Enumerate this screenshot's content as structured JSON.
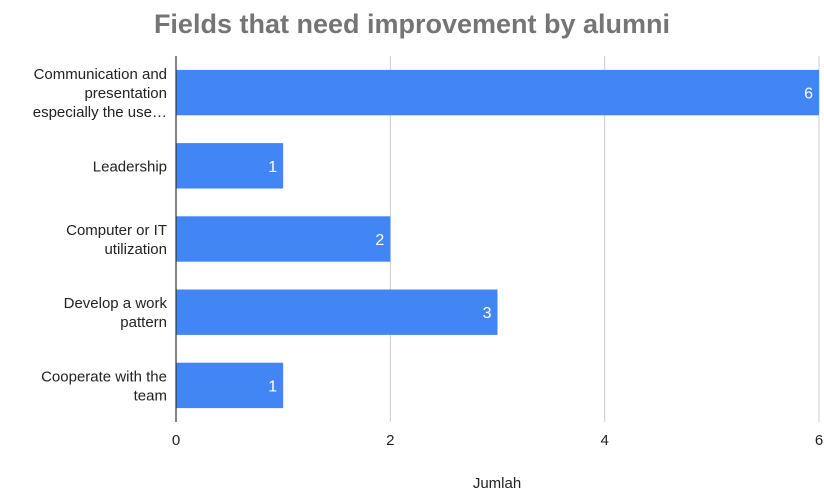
{
  "chart_data": {
    "type": "bar",
    "orientation": "horizontal",
    "title": "Fields that need improvement by alumni",
    "xlabel": "Jumlah",
    "ylabel": "",
    "categories": [
      [
        "Communication and",
        "presentation",
        "especially the use…"
      ],
      [
        "Leadership"
      ],
      [
        "Computer or IT",
        "utilization"
      ],
      [
        "Develop a work",
        "pattern"
      ],
      [
        "Cooperate with the",
        "team"
      ]
    ],
    "values": [
      6,
      1,
      2,
      3,
      1
    ],
    "xlim": [
      0,
      6
    ],
    "xticks": [
      0,
      2,
      4,
      6
    ],
    "grid": true,
    "data_labels": true,
    "legend": "none",
    "colors": {
      "bar": "#4285f4",
      "title": "#757575",
      "text": "#222222",
      "grid": "#cccccc",
      "axis": "#333333",
      "label": "#ffffff"
    }
  }
}
